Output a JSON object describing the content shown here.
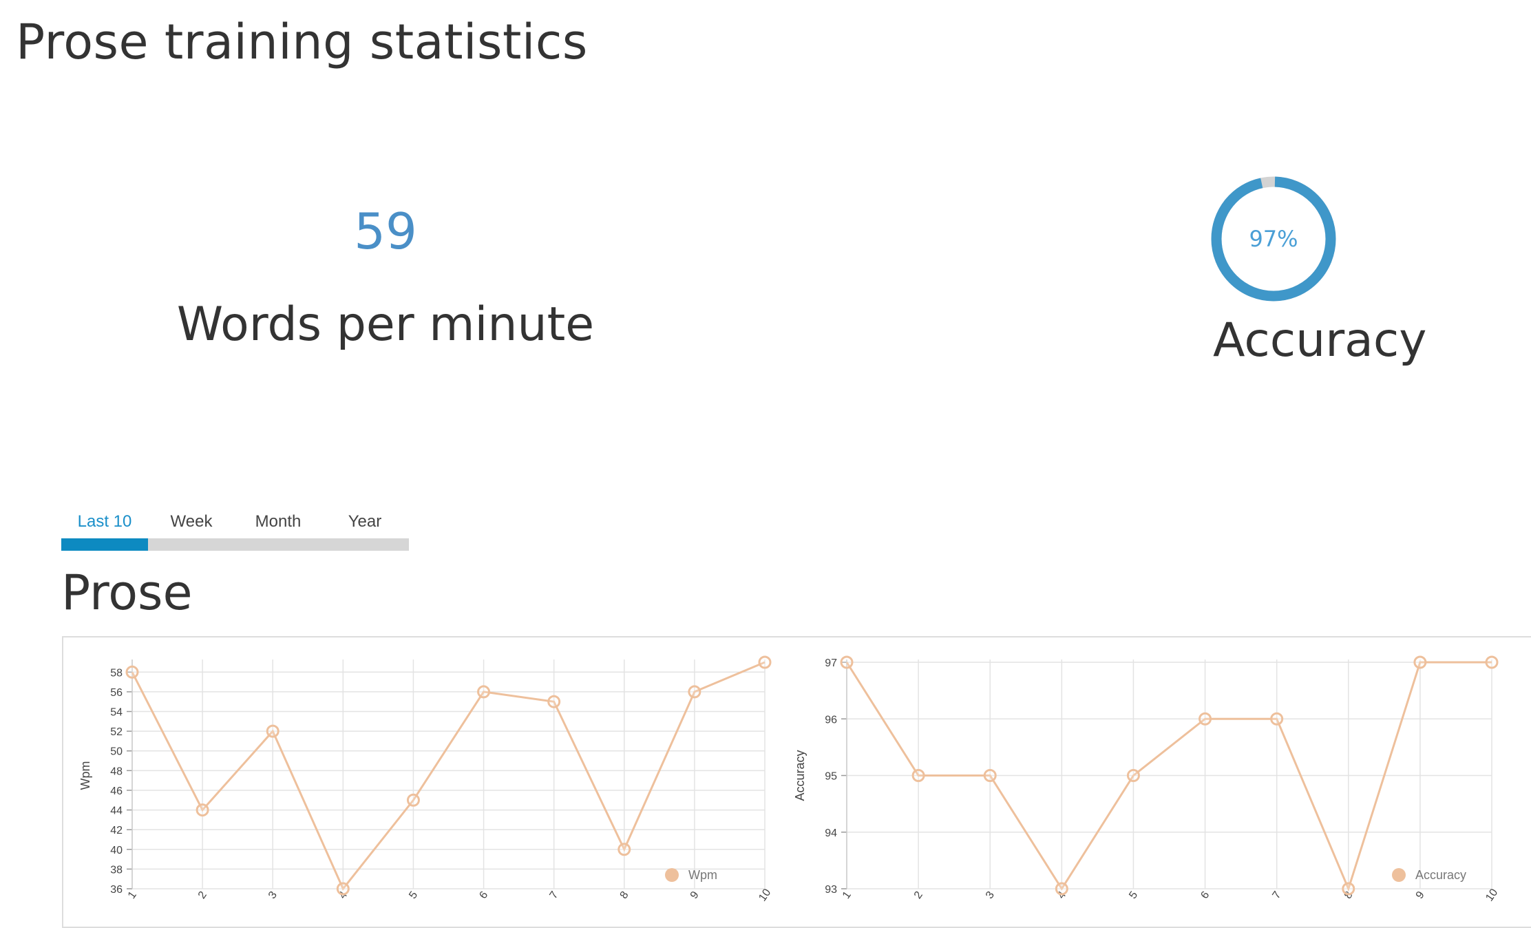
{
  "page": {
    "title": "Prose training statistics"
  },
  "stats": {
    "wpm": {
      "value": "59",
      "label": "Words per minute"
    },
    "accuracy": {
      "value": "97%",
      "label": "Accuracy",
      "percent": 97
    }
  },
  "tabs": [
    {
      "label": "Last 10",
      "active": true
    },
    {
      "label": "Week",
      "active": false
    },
    {
      "label": "Month",
      "active": false
    },
    {
      "label": "Year",
      "active": false
    }
  ],
  "section": {
    "title": "Prose"
  },
  "colors": {
    "accent": "#4a8fc7",
    "tab_active": "#1a8fc9",
    "tab_indicator": "#0d8ac1",
    "series": "#eec09c",
    "donut": "#3f97c9",
    "donut_track": "#d3d3d3"
  },
  "chart_data": [
    {
      "type": "line",
      "x": [
        "1",
        "2",
        "3",
        "4",
        "5",
        "6",
        "7",
        "8",
        "9",
        "10"
      ],
      "series": [
        {
          "name": "Wpm",
          "values": [
            58,
            44,
            52,
            36,
            45,
            56,
            55,
            40,
            56,
            59
          ]
        }
      ],
      "ylabel": "Wpm",
      "ylim": [
        36,
        59
      ],
      "yticks": [
        36,
        38,
        40,
        42,
        44,
        46,
        48,
        50,
        52,
        54,
        56,
        58
      ],
      "grid": true,
      "legend": "bottom-right"
    },
    {
      "type": "line",
      "x": [
        "1",
        "2",
        "3",
        "4",
        "5",
        "6",
        "7",
        "8",
        "9",
        "10"
      ],
      "series": [
        {
          "name": "Accuracy",
          "values": [
            97,
            95,
            95,
            93,
            95,
            96,
            96,
            93,
            97,
            97
          ]
        }
      ],
      "ylabel": "Accuracy",
      "ylim": [
        93,
        97
      ],
      "yticks": [
        93,
        94,
        95,
        96,
        97
      ],
      "grid": true,
      "legend": "bottom-right"
    }
  ]
}
